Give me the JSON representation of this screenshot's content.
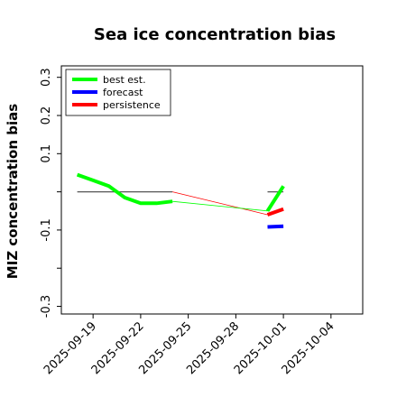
{
  "chart_data": {
    "type": "line",
    "title": "Sea ice concentration bias",
    "ylabel": "MIZ concentration bias",
    "xlabel": "",
    "ylim": [
      -0.32,
      0.33
    ],
    "xlim": [
      "2025-09-17",
      "2025-10-06"
    ],
    "xticks": [
      "2025-09-19",
      "2025-09-22",
      "2025-09-25",
      "2025-09-28",
      "2025-10-01",
      "2025-10-04"
    ],
    "xtick_highlight": "2025-09-25",
    "xtick_highlight_color": "#228b22",
    "yticks": [
      -0.3,
      -0.2,
      -0.1,
      0.0,
      0.1,
      0.2,
      0.3
    ],
    "ytick_labels": [
      "-0.3",
      "",
      "-0.1",
      "",
      "0.1",
      "0.2",
      "0.3"
    ],
    "grid": false,
    "legend_position": "top-left",
    "reference_lines": [
      {
        "x": [
          "2025-09-18",
          "2025-09-24"
        ],
        "y": [
          0.0,
          0.0
        ],
        "color": "#555555"
      },
      {
        "x": [
          "2025-09-30",
          "2025-10-01"
        ],
        "y": [
          0.0,
          0.0
        ],
        "color": "#555555"
      }
    ],
    "thin_lines": [
      {
        "x": [
          "2025-09-24",
          "2025-09-30"
        ],
        "y": [
          0.0,
          -0.06
        ],
        "color": "#ff0000"
      },
      {
        "x": [
          "2025-09-24",
          "2025-09-30"
        ],
        "y": [
          -0.025,
          -0.05
        ],
        "color": "#00ff00"
      }
    ],
    "series": [
      {
        "name": "best est.",
        "color": "#00ff00",
        "x": [
          "2025-09-18",
          "2025-09-19",
          "2025-09-20",
          "2025-09-21",
          "2025-09-22",
          "2025-09-23",
          "2025-09-24"
        ],
        "y": [
          0.045,
          0.03,
          0.015,
          -0.015,
          -0.03,
          -0.03,
          -0.025
        ]
      },
      {
        "name": "best est.",
        "color": "#00ff00",
        "x": [
          "2025-09-30",
          "2025-10-01"
        ],
        "y": [
          -0.05,
          0.015
        ]
      },
      {
        "name": "forecast",
        "color": "#0000ff",
        "x": [
          "2025-09-30",
          "2025-10-01"
        ],
        "y": [
          -0.092,
          -0.09
        ]
      },
      {
        "name": "persistence",
        "color": "#ff0000",
        "x": [
          "2025-09-30",
          "2025-10-01"
        ],
        "y": [
          -0.06,
          -0.045
        ]
      }
    ],
    "legend": [
      {
        "label": "best est.",
        "color": "#00ff00"
      },
      {
        "label": "forecast",
        "color": "#0000ff"
      },
      {
        "label": "persistence",
        "color": "#ff0000"
      }
    ]
  }
}
